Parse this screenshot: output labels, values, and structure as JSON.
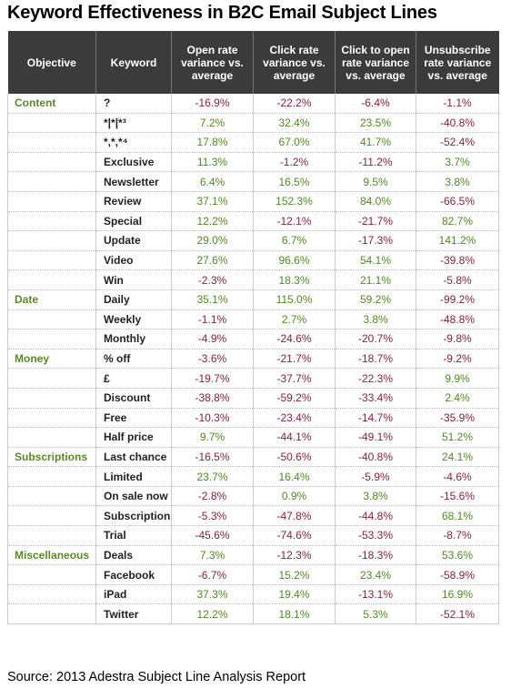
{
  "title": "Keyword Effectiveness in B2C Email Subject Lines",
  "table": {
    "header": [
      "Objective",
      "Keyword",
      "Open rate variance vs. average",
      "Click rate variance vs. average",
      "Click to open rate variance vs. average",
      "Unsubscribe rate variance vs. average"
    ],
    "groups": [
      {
        "objective": "Content",
        "rows": [
          [
            "?",
            "-16.9%",
            "-22.2%",
            "-6.4%",
            "-1.1%"
          ],
          [
            "*|*|*³",
            "7.2%",
            "32.4%",
            "23.5%",
            "-40.8%"
          ],
          [
            "*,*,*⁴",
            "17.8%",
            "67.0%",
            "41.7%",
            "-52.4%"
          ],
          [
            "Exclusive",
            "11.3%",
            "-1.2%",
            "-11.2%",
            "3.7%"
          ],
          [
            "Newsletter",
            "6.4%",
            "16.5%",
            "9.5%",
            "3.8%"
          ],
          [
            "Review",
            "37.1%",
            "152.3%",
            "84.0%",
            "-66.5%"
          ],
          [
            "Special",
            "12.2%",
            "-12.1%",
            "-21.7%",
            "82.7%"
          ],
          [
            "Update",
            "29.0%",
            "6.7%",
            "-17.3%",
            "141.2%"
          ],
          [
            "Video",
            "27.6%",
            "96.6%",
            "54.1%",
            "-39.8%"
          ],
          [
            "Win",
            "-2.3%",
            "18.3%",
            "21.1%",
            "-5.8%"
          ]
        ]
      },
      {
        "objective": "Date",
        "rows": [
          [
            "Daily",
            "35.1%",
            "115.0%",
            "59.2%",
            "-99.2%"
          ],
          [
            "Weekly",
            "-1.1%",
            "2.7%",
            "3.8%",
            "-48.8%"
          ],
          [
            "Monthly",
            "-4.9%",
            "-24.6%",
            "-20.7%",
            "-9.8%"
          ]
        ]
      },
      {
        "objective": "Money",
        "rows": [
          [
            "% off",
            "-3.6%",
            "-21.7%",
            "-18.7%",
            "-9.2%"
          ],
          [
            "£",
            "-19.7%",
            "-37.7%",
            "-22.3%",
            "9.9%"
          ],
          [
            "Discount",
            "-38.8%",
            "-59.2%",
            "-33.4%",
            "2.4%"
          ],
          [
            "Free",
            "-10.3%",
            "-23.4%",
            "-14.7%",
            "-35.9%"
          ],
          [
            "Half price",
            "9.7%",
            "-44.1%",
            "-49.1%",
            "51.2%"
          ]
        ]
      },
      {
        "objective": "Subscriptions",
        "rows": [
          [
            "Last chance",
            "-16.5%",
            "-50.6%",
            "-40.8%",
            "24.1%"
          ],
          [
            "Limited",
            "23.7%",
            "16.4%",
            "-5.9%",
            "-4.6%"
          ],
          [
            "On sale now",
            "-2.8%",
            "0.9%",
            "3.8%",
            "-15.6%"
          ],
          [
            "Subscription",
            "-5.3%",
            "-47.8%",
            "-44.8%",
            "68.1%"
          ],
          [
            "Trial",
            "-45.6%",
            "-74.6%",
            "-53.3%",
            "-8.7%"
          ]
        ]
      },
      {
        "objective": "Miscellaneous",
        "rows": [
          [
            "Deals",
            "7.3%",
            "-12.3%",
            "-18.3%",
            "53.6%"
          ],
          [
            "Facebook",
            "-6.7%",
            "15.2%",
            "23.4%",
            "-58.9%"
          ],
          [
            "iPad",
            "37.3%",
            "19.4%",
            "-13.1%",
            "16.9%"
          ],
          [
            "Twitter",
            "12.2%",
            "18.1%",
            "5.3%",
            "-52.1%"
          ]
        ]
      }
    ]
  },
  "source": "Source: 2013 Adestra Subject Line Analysis Report"
}
